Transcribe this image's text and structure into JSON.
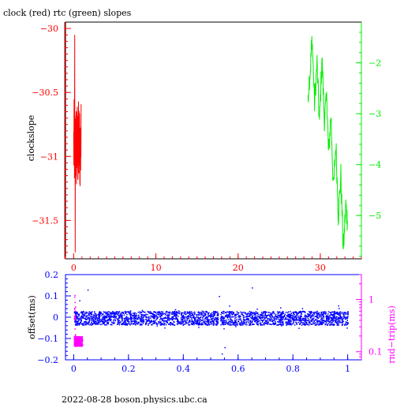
{
  "colors": {
    "clock": "#ff0000",
    "rtc": "#00ee00",
    "offset": "#0000ff",
    "rndtrip": "#ff00ff",
    "frame": "#000000"
  },
  "footer": "2022-08-28  boson.physics.ubc.ca",
  "chart_data": [
    {
      "type": "line",
      "title": "clock (red) rtc (green) slopes",
      "xlabel": "",
      "ylabel": "clockslope",
      "xlim": [
        -1,
        35
      ],
      "xticks": [
        0,
        10,
        20,
        30
      ],
      "ylim": [
        -31.8,
        -29.95
      ],
      "yticks": [
        -30,
        -30.5,
        -31,
        -31.5
      ],
      "ytick_labels": [
        "−30",
        "−30.5",
        "−31",
        "−31.5"
      ],
      "y2lim": [
        -5.85,
        -1.2
      ],
      "y2ticks": [
        -2,
        -3,
        -4,
        -5
      ],
      "y2tick_labels": [
        "−2",
        "−3",
        "−4",
        "−5"
      ],
      "series": [
        {
          "name": "clock",
          "axis": "left",
          "x_range": [
            0,
            0.9
          ],
          "y_envelope": [
            -31.75,
            -30.05
          ],
          "y_core": [
            -31.3,
            -30.55
          ]
        },
        {
          "name": "rtc",
          "axis": "right",
          "x": [
            28.5,
            28.8,
            29.0,
            29.3,
            29.6,
            29.9,
            30.2,
            30.5,
            30.8,
            31.0,
            31.3,
            31.6,
            31.9,
            32.2,
            32.5,
            32.8,
            33.1,
            33.3
          ],
          "y": [
            -2.6,
            -2.1,
            -1.5,
            -2.8,
            -2.0,
            -3.2,
            -1.9,
            -3.1,
            -2.7,
            -3.8,
            -3.0,
            -4.5,
            -3.6,
            -5.0,
            -4.2,
            -5.7,
            -4.8,
            -5.1
          ]
        }
      ]
    },
    {
      "type": "scatter",
      "xlabel": "",
      "ylabel": "offset(ms)",
      "y2label": "rnd−trip(ms)",
      "xlim": [
        -0.03,
        1.05
      ],
      "xticks": [
        0,
        0.2,
        0.4,
        0.6,
        0.8,
        1
      ],
      "xtick_labels": [
        "0",
        "0.2",
        "0.4",
        "0.6",
        "0.8",
        "1"
      ],
      "ylim": [
        -0.2,
        0.2
      ],
      "yticks": [
        0.2,
        0.1,
        0,
        -0.1,
        -0.2
      ],
      "ytick_labels": [
        "0.2",
        "0.1",
        "0",
        "−0.1",
        "−0.2"
      ],
      "y2_scale": "log",
      "y2lim": [
        0.07,
        3
      ],
      "y2ticks": [
        1,
        0.1
      ],
      "y2tick_labels": [
        "1",
        "0.1"
      ],
      "series": [
        {
          "name": "offset",
          "axis": "left",
          "x_range": [
            0,
            1
          ],
          "y_band": [
            -0.035,
            0.03
          ],
          "gap_at": 0.53,
          "outliers": [
            {
              "x": 0.02,
              "y": 0.08
            },
            {
              "x": 0.05,
              "y": 0.13
            },
            {
              "x": 0.53,
              "y": 0.1
            },
            {
              "x": 0.54,
              "y": -0.17
            },
            {
              "x": 0.55,
              "y": -0.14
            },
            {
              "x": 0.65,
              "y": 0.14
            }
          ]
        },
        {
          "name": "rndtrip",
          "axis": "right",
          "x_range": [
            0,
            0.03
          ],
          "y_band": [
            0.13,
            0.2
          ],
          "y_max": 1.3
        }
      ]
    }
  ]
}
